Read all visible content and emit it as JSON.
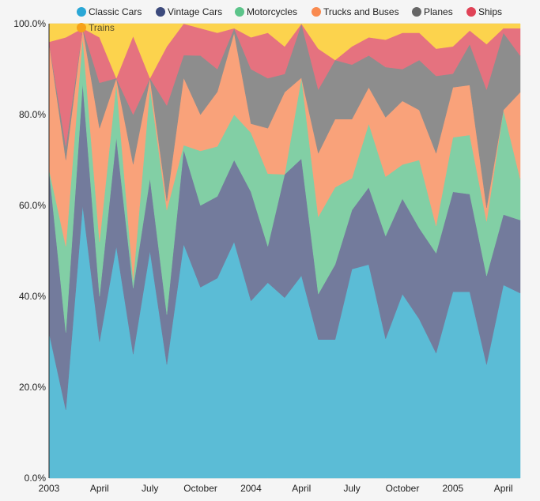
{
  "chart_data": {
    "type": "area",
    "stacked": true,
    "normalized": true,
    "title": "",
    "xlabel": "",
    "ylabel": "",
    "ylim": [
      0,
      100
    ],
    "y_ticks": [
      "0.0%",
      "20.0%",
      "40.0%",
      "60.0%",
      "80.0%",
      "100.0%"
    ],
    "x_ticks": [
      "2003",
      "April",
      "July",
      "October",
      "2004",
      "April",
      "July",
      "October",
      "2005",
      "April"
    ],
    "x_tick_month_index": [
      0,
      3,
      6,
      9,
      12,
      15,
      18,
      21,
      24,
      27
    ],
    "grid": true,
    "legend_position": "top",
    "x": [
      "2003-01",
      "2003-02",
      "2003-03",
      "2003-04",
      "2003-05",
      "2003-06",
      "2003-07",
      "2003-08",
      "2003-09",
      "2003-10",
      "2003-11",
      "2003-12",
      "2004-01",
      "2004-02",
      "2004-03",
      "2004-04",
      "2004-05",
      "2004-06",
      "2004-07",
      "2004-08",
      "2004-09",
      "2004-10",
      "2004-11",
      "2004-12",
      "2005-01",
      "2005-02",
      "2005-03",
      "2005-04",
      "2005-05"
    ],
    "series": [
      {
        "name": "Classic Cars",
        "color": "#5bbcd6",
        "values": [
          32,
          15,
          60,
          30,
          51,
          30,
          50,
          25,
          52,
          42,
          44,
          52,
          39,
          43,
          39.5,
          45,
          30.5,
          30.5,
          46,
          47,
          30.5,
          40.5,
          35,
          27.5,
          41,
          41,
          25,
          42.5,
          40.5
        ]
      },
      {
        "name": "Vintage Cars",
        "color": "#737b9c",
        "values": [
          36,
          17,
          27,
          10,
          24,
          16,
          16,
          11,
          21,
          18,
          18,
          18,
          24,
          8,
          27,
          26,
          10,
          16.5,
          13,
          17,
          22.5,
          21,
          20,
          22,
          22,
          21.5,
          19.5,
          15.5,
          16
        ]
      },
      {
        "name": "Motorcycles",
        "color": "#82cfa5",
        "values": [
          0,
          19,
          10,
          12,
          12,
          2,
          20,
          23,
          1,
          12,
          11,
          10,
          13,
          16,
          0,
          18,
          17,
          17,
          7,
          14,
          13,
          7.5,
          15,
          6,
          12,
          13,
          12,
          23,
          9
        ]
      },
      {
        "name": "Trucks and Buses",
        "color": "#f9a27a",
        "values": [
          28,
          19,
          2,
          25,
          1,
          28,
          2,
          2,
          15,
          8,
          12,
          18,
          2,
          10,
          18,
          0,
          14,
          15,
          13,
          8,
          13,
          14,
          11,
          16,
          11,
          11,
          3,
          0,
          19
        ]
      },
      {
        "name": "Planes",
        "color": "#8d8d8d",
        "values": [
          0,
          3,
          0,
          10,
          0,
          12,
          0,
          21,
          5,
          13,
          5,
          1,
          12,
          11,
          4,
          12,
          14,
          13,
          12,
          7,
          11,
          7,
          11,
          17,
          3,
          9,
          26,
          17,
          8
        ]
      },
      {
        "name": "Ships",
        "color": "#e5727f",
        "values": [
          0,
          24,
          0,
          10,
          0,
          19,
          0,
          13,
          7,
          6,
          8,
          0,
          7,
          10,
          6,
          0,
          9,
          0,
          4,
          4,
          6,
          8,
          6,
          6,
          6,
          3,
          10,
          1,
          6
        ]
      },
      {
        "name": "Trains",
        "color": "#fcd34d",
        "values": [
          4,
          3,
          1,
          3,
          12,
          3,
          12,
          5,
          0,
          1,
          2,
          1,
          3,
          2,
          5,
          0,
          5.5,
          8,
          5,
          3,
          3.5,
          2,
          2,
          5.5,
          5,
          1.5,
          4.5,
          1,
          1
        ]
      }
    ]
  },
  "legend": {
    "items": [
      {
        "label": "Classic Cars",
        "color": "#2aa7d6"
      },
      {
        "label": "Vintage Cars",
        "color": "#3c4a7c"
      },
      {
        "label": "Motorcycles",
        "color": "#5cc48a"
      },
      {
        "label": "Trucks and Buses",
        "color": "#f98a4f"
      },
      {
        "label": "Planes",
        "color": "#666666"
      },
      {
        "label": "Ships",
        "color": "#e04357"
      },
      {
        "label": "Trains",
        "color": "#f6a21a"
      }
    ]
  }
}
